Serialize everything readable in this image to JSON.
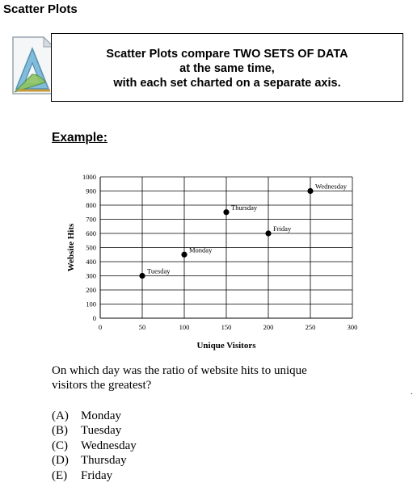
{
  "page": {
    "title": "Scatter Plots",
    "example_label": "Example:"
  },
  "callout": {
    "lines": [
      "Scatter Plots compare TWO SETS OF DATA",
      "at the same time,",
      "with each set charted on a separate axis."
    ]
  },
  "icons": {
    "logo": "geometry-tools-document-icon"
  },
  "chart_data": {
    "type": "scatter",
    "xlabel": "Unique Visitors",
    "ylabel": "Website Hits",
    "xlim": [
      0,
      300
    ],
    "ylim": [
      0,
      1000
    ],
    "x_ticks": [
      0,
      50,
      100,
      150,
      200,
      250,
      300
    ],
    "y_ticks": [
      0,
      100,
      200,
      300,
      400,
      500,
      600,
      700,
      800,
      900,
      1000
    ],
    "grid": true,
    "points": [
      {
        "label": "Tuesday",
        "x": 50,
        "y": 300
      },
      {
        "label": "Monday",
        "x": 100,
        "y": 450
      },
      {
        "label": "Thursday",
        "x": 150,
        "y": 750
      },
      {
        "label": "Friday",
        "x": 200,
        "y": 600
      },
      {
        "label": "Wednesday",
        "x": 250,
        "y": 900
      }
    ]
  },
  "question": {
    "text": "On which day was the ratio of website hits to unique visitors the greatest?",
    "trailing_mark": ".",
    "choices": [
      {
        "letter": "(A)",
        "text": "Monday"
      },
      {
        "letter": "(B)",
        "text": "Tuesday"
      },
      {
        "letter": "(C)",
        "text": "Wednesday"
      },
      {
        "letter": "(D)",
        "text": "Thursday"
      },
      {
        "letter": "(E)",
        "text": "Friday"
      }
    ]
  }
}
